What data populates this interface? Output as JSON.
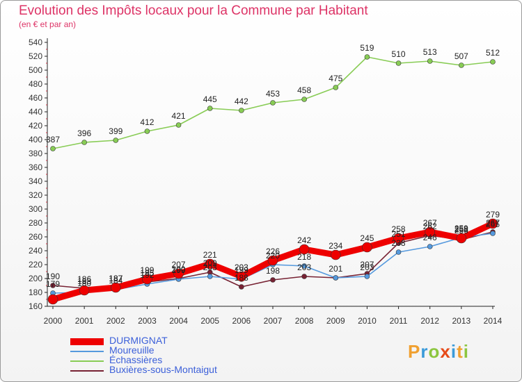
{
  "header": {
    "title": "Evolution des Impôts locaux pour la Commune par Habitant",
    "subtitle": "(en € et par an)"
  },
  "logo": {
    "text": "Proxiti",
    "colors": [
      "#f0a030",
      "#3a9ad9",
      "#8cc63f",
      "#e64a19",
      "#3a9ad9",
      "#f0a030",
      "#8cc63f"
    ]
  },
  "chart_data": {
    "type": "line",
    "x": [
      2000,
      2001,
      2002,
      2003,
      2004,
      2005,
      2006,
      2007,
      2008,
      2009,
      2010,
      2011,
      2012,
      2013,
      2014
    ],
    "ylim": [
      160,
      540
    ],
    "yticks": [
      160,
      180,
      200,
      220,
      240,
      260,
      280,
      300,
      320,
      340,
      360,
      380,
      400,
      420,
      440,
      460,
      480,
      500,
      520,
      540
    ],
    "grid": false,
    "legend_position": "bottom-left",
    "series": [
      {
        "name": "DURMIGNAT",
        "color": "#ee0000",
        "values": [
          170,
          183,
          187,
          199,
          207,
          221,
          203,
          226,
          242,
          234,
          245,
          258,
          267,
          258,
          279
        ],
        "labels_shown": [
          false,
          true,
          true,
          true,
          true,
          true,
          true,
          true,
          true,
          true,
          true,
          true,
          true,
          true,
          true
        ]
      },
      {
        "name": "Moureuille",
        "color": "#5599dd",
        "values": [
          179,
          180,
          184,
          192,
          199,
          203,
          199,
          220,
          218,
          201,
          203,
          238,
          246,
          259,
          265
        ],
        "labels_shown": [
          true,
          true,
          true,
          true,
          true,
          true,
          true,
          true,
          true,
          false,
          true,
          true,
          true,
          true,
          true
        ]
      },
      {
        "name": "Échassières",
        "color": "#88cc55",
        "values": [
          387,
          396,
          399,
          412,
          421,
          445,
          442,
          453,
          458,
          475,
          519,
          510,
          513,
          507,
          512
        ],
        "labels_shown": [
          true,
          true,
          true,
          true,
          true,
          true,
          true,
          true,
          true,
          true,
          true,
          true,
          true,
          true,
          true
        ]
      },
      {
        "name": "Buxières-sous-Montaigut",
        "color": "#772233",
        "values": [
          190,
          186,
          187,
          195,
          200,
          209,
          188,
          198,
          203,
          201,
          207,
          251,
          262,
          256,
          267
        ],
        "labels_shown": [
          true,
          true,
          true,
          true,
          true,
          true,
          true,
          true,
          true,
          true,
          true,
          true,
          true,
          true,
          true
        ]
      }
    ]
  }
}
